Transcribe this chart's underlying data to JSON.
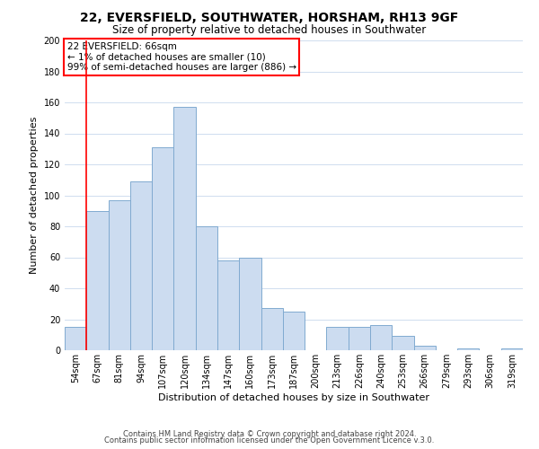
{
  "title": "22, EVERSFIELD, SOUTHWATER, HORSHAM, RH13 9GF",
  "subtitle": "Size of property relative to detached houses in Southwater",
  "xlabel": "Distribution of detached houses by size in Southwater",
  "ylabel": "Number of detached properties",
  "bar_labels": [
    "54sqm",
    "67sqm",
    "81sqm",
    "94sqm",
    "107sqm",
    "120sqm",
    "134sqm",
    "147sqm",
    "160sqm",
    "173sqm",
    "187sqm",
    "200sqm",
    "213sqm",
    "226sqm",
    "240sqm",
    "253sqm",
    "266sqm",
    "279sqm",
    "293sqm",
    "306sqm",
    "319sqm"
  ],
  "bar_heights": [
    15,
    90,
    97,
    109,
    131,
    157,
    80,
    58,
    60,
    27,
    25,
    0,
    15,
    15,
    16,
    9,
    3,
    0,
    1,
    0,
    1
  ],
  "bar_color": "#ccdcf0",
  "bar_edge_color": "#80aad0",
  "ylim": [
    0,
    200
  ],
  "yticks": [
    0,
    20,
    40,
    60,
    80,
    100,
    120,
    140,
    160,
    180,
    200
  ],
  "annotation_line1": "22 EVERSFIELD: 66sqm",
  "annotation_line2": "← 1% of detached houses are smaller (10)",
  "annotation_line3": "99% of semi-detached houses are larger (886) →",
  "red_line_x": 0.5,
  "footer_line1": "Contains HM Land Registry data © Crown copyright and database right 2024.",
  "footer_line2": "Contains public sector information licensed under the Open Government Licence v.3.0.",
  "background_color": "#ffffff",
  "grid_color": "#c8d8ec",
  "title_fontsize": 10,
  "subtitle_fontsize": 8.5,
  "axis_label_fontsize": 8,
  "tick_fontsize": 7,
  "annotation_fontsize": 7.5,
  "footer_fontsize": 6
}
